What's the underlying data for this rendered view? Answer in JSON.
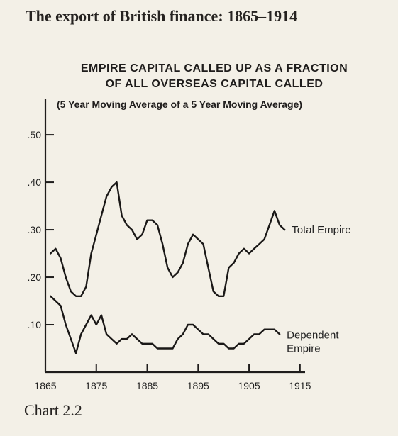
{
  "page": {
    "header": "The export of British finance: 1865–1914",
    "caption": "Chart 2.2"
  },
  "chart_data": {
    "type": "line",
    "title_lines": [
      "EMPIRE CAPITAL CALLED UP AS A FRACTION",
      "OF ALL OVERSEAS CAPITAL CALLED"
    ],
    "subtitle": "(5 Year Moving Average of a 5 Year Moving Average)",
    "xlabel": "",
    "ylabel": "",
    "xlim": [
      1865,
      1916
    ],
    "ylim": [
      0,
      0.53
    ],
    "x_ticks": [
      1865,
      1875,
      1885,
      1895,
      1905,
      1915
    ],
    "y_ticks": [
      0.1,
      0.2,
      0.3,
      0.4,
      0.5
    ],
    "y_tick_labels": [
      ".10",
      ".20",
      ".30",
      ".40",
      ".50"
    ],
    "grid": false,
    "legend": "labels placed at line ends",
    "series": [
      {
        "name": "Total Empire",
        "label_lines": [
          "Total Empire"
        ],
        "points": [
          [
            1866,
            0.25
          ],
          [
            1867,
            0.26
          ],
          [
            1868,
            0.24
          ],
          [
            1869,
            0.2
          ],
          [
            1870,
            0.17
          ],
          [
            1871,
            0.16
          ],
          [
            1872,
            0.16
          ],
          [
            1873,
            0.18
          ],
          [
            1874,
            0.25
          ],
          [
            1875,
            0.29
          ],
          [
            1876,
            0.33
          ],
          [
            1877,
            0.37
          ],
          [
            1878,
            0.39
          ],
          [
            1879,
            0.4
          ],
          [
            1880,
            0.33
          ],
          [
            1881,
            0.31
          ],
          [
            1882,
            0.3
          ],
          [
            1883,
            0.28
          ],
          [
            1884,
            0.29
          ],
          [
            1885,
            0.32
          ],
          [
            1886,
            0.32
          ],
          [
            1887,
            0.31
          ],
          [
            1888,
            0.27
          ],
          [
            1889,
            0.22
          ],
          [
            1890,
            0.2
          ],
          [
            1891,
            0.21
          ],
          [
            1892,
            0.23
          ],
          [
            1893,
            0.27
          ],
          [
            1894,
            0.29
          ],
          [
            1895,
            0.28
          ],
          [
            1896,
            0.27
          ],
          [
            1897,
            0.22
          ],
          [
            1898,
            0.17
          ],
          [
            1899,
            0.16
          ],
          [
            1900,
            0.16
          ],
          [
            1901,
            0.22
          ],
          [
            1902,
            0.23
          ],
          [
            1903,
            0.25
          ],
          [
            1904,
            0.26
          ],
          [
            1905,
            0.25
          ],
          [
            1906,
            0.26
          ],
          [
            1907,
            0.27
          ],
          [
            1908,
            0.28
          ],
          [
            1909,
            0.31
          ],
          [
            1910,
            0.34
          ],
          [
            1911,
            0.31
          ],
          [
            1912,
            0.3
          ]
        ]
      },
      {
        "name": "Dependent Empire",
        "label_lines": [
          "Dependent",
          "Empire"
        ],
        "points": [
          [
            1866,
            0.16
          ],
          [
            1867,
            0.15
          ],
          [
            1868,
            0.14
          ],
          [
            1869,
            0.1
          ],
          [
            1870,
            0.07
          ],
          [
            1871,
            0.04
          ],
          [
            1872,
            0.08
          ],
          [
            1873,
            0.1
          ],
          [
            1874,
            0.12
          ],
          [
            1875,
            0.1
          ],
          [
            1876,
            0.12
          ],
          [
            1877,
            0.08
          ],
          [
            1878,
            0.07
          ],
          [
            1879,
            0.06
          ],
          [
            1880,
            0.07
          ],
          [
            1881,
            0.07
          ],
          [
            1882,
            0.08
          ],
          [
            1883,
            0.07
          ],
          [
            1884,
            0.06
          ],
          [
            1885,
            0.06
          ],
          [
            1886,
            0.06
          ],
          [
            1887,
            0.05
          ],
          [
            1888,
            0.05
          ],
          [
            1889,
            0.05
          ],
          [
            1890,
            0.05
          ],
          [
            1891,
            0.07
          ],
          [
            1892,
            0.08
          ],
          [
            1893,
            0.1
          ],
          [
            1894,
            0.1
          ],
          [
            1895,
            0.09
          ],
          [
            1896,
            0.08
          ],
          [
            1897,
            0.08
          ],
          [
            1898,
            0.07
          ],
          [
            1899,
            0.06
          ],
          [
            1900,
            0.06
          ],
          [
            1901,
            0.05
          ],
          [
            1902,
            0.05
          ],
          [
            1903,
            0.06
          ],
          [
            1904,
            0.06
          ],
          [
            1905,
            0.07
          ],
          [
            1906,
            0.08
          ],
          [
            1907,
            0.08
          ],
          [
            1908,
            0.09
          ],
          [
            1909,
            0.09
          ],
          [
            1910,
            0.09
          ],
          [
            1911,
            0.08
          ]
        ]
      }
    ]
  }
}
